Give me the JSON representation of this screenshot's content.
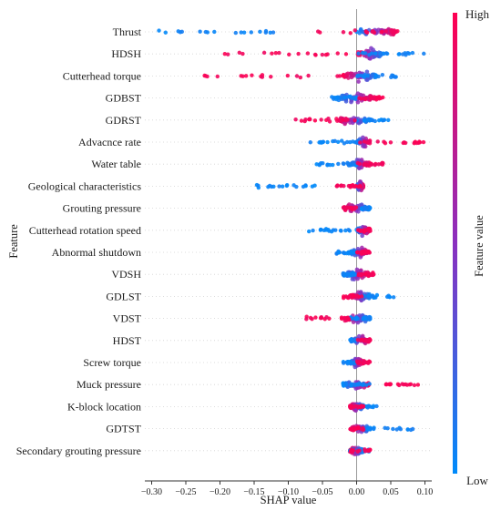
{
  "chart_data": {
    "type": "scatter",
    "subtype": "shap-beeswarm",
    "xlabel": "SHAP value",
    "ylabel": "Feature",
    "xlim": [
      -0.31,
      0.11
    ],
    "xticks": [
      -0.3,
      -0.25,
      -0.2,
      -0.15,
      -0.1,
      -0.05,
      0.0,
      0.05,
      0.1
    ],
    "xtick_labels": [
      "−0.30",
      "−0.25",
      "−0.20",
      "−0.15",
      "−0.10",
      "−0.05",
      "0.00",
      "0.05",
      "0.10"
    ],
    "zero_line": true,
    "colorbar": {
      "title": "Feature value",
      "high_label": "High",
      "low_label": "Low",
      "high_color": "#ff0051",
      "low_color": "#008bfb"
    },
    "features": [
      {
        "name": "Thrust",
        "low_range": [
          -0.29,
          -0.12
        ],
        "high_range": [
          -0.06,
          0.06
        ],
        "core": [
          0.0,
          0.06
        ]
      },
      {
        "name": "HDSH",
        "low_range": [
          0.0,
          0.1
        ],
        "high_range": [
          -0.2,
          0.01
        ],
        "core": [
          0.0,
          0.04
        ]
      },
      {
        "name": "Cutterhead torque",
        "low_range": [
          0.0,
          0.06
        ],
        "high_range": [
          -0.23,
          0.01
        ],
        "core": [
          -0.02,
          0.03
        ]
      },
      {
        "name": "GDBST",
        "low_range": [
          -0.04,
          0.0
        ],
        "high_range": [
          0.0,
          0.04
        ],
        "core": [
          -0.03,
          0.03
        ]
      },
      {
        "name": "GDRST",
        "low_range": [
          0.0,
          0.05
        ],
        "high_range": [
          -0.09,
          0.01
        ],
        "core": [
          -0.03,
          0.02
        ]
      },
      {
        "name": "Advacnce rate",
        "low_range": [
          -0.07,
          0.0
        ],
        "high_range": [
          0.0,
          0.1
        ],
        "core": [
          0.0,
          0.02
        ]
      },
      {
        "name": "Water table",
        "low_range": [
          -0.06,
          0.0
        ],
        "high_range": [
          0.0,
          0.04
        ],
        "core": [
          -0.01,
          0.02
        ]
      },
      {
        "name": "Geological characteristics",
        "low_range": [
          -0.15,
          -0.05
        ],
        "high_range": [
          -0.03,
          0.01
        ],
        "core": [
          0.0,
          0.01
        ]
      },
      {
        "name": "Grouting pressure",
        "low_range": [
          0.0,
          0.02
        ],
        "high_range": [
          -0.02,
          0.0
        ],
        "core": [
          -0.02,
          0.02
        ]
      },
      {
        "name": "Cutterhead rotation speed",
        "low_range": [
          -0.07,
          -0.01
        ],
        "high_range": [
          0.0,
          0.02
        ],
        "core": [
          0.0,
          0.02
        ]
      },
      {
        "name": "Abnormal shutdown",
        "low_range": [
          -0.03,
          0.0
        ],
        "high_range": [
          0.0,
          0.02
        ],
        "core": [
          -0.01,
          0.02
        ]
      },
      {
        "name": "VDSH",
        "low_range": [
          -0.02,
          0.0
        ],
        "high_range": [
          0.0,
          0.03
        ],
        "core": [
          -0.02,
          0.02
        ]
      },
      {
        "name": "GDLST",
        "low_range": [
          0.0,
          0.06
        ],
        "high_range": [
          -0.02,
          0.01
        ],
        "core": [
          -0.01,
          0.02
        ]
      },
      {
        "name": "VDST",
        "low_range": [
          -0.01,
          0.02
        ],
        "high_range": [
          -0.08,
          -0.01
        ],
        "core": [
          -0.02,
          0.02
        ]
      },
      {
        "name": "HDST",
        "low_range": [
          -0.01,
          0.0
        ],
        "high_range": [
          0.0,
          0.02
        ],
        "core": [
          -0.01,
          0.02
        ]
      },
      {
        "name": "Screw torque",
        "low_range": [
          -0.02,
          0.0
        ],
        "high_range": [
          0.0,
          0.02
        ],
        "core": [
          -0.01,
          0.01
        ]
      },
      {
        "name": "Muck pressure",
        "low_range": [
          -0.02,
          0.02
        ],
        "high_range": [
          0.04,
          0.09
        ],
        "core": [
          -0.02,
          0.02
        ]
      },
      {
        "name": "K-block location",
        "low_range": [
          -0.01,
          0.03
        ],
        "high_range": [
          -0.01,
          0.01
        ],
        "core": [
          -0.01,
          0.01
        ]
      },
      {
        "name": "GDTST",
        "low_range": [
          0.0,
          0.1
        ],
        "high_range": [
          -0.01,
          0.01
        ],
        "core": [
          -0.01,
          0.02
        ]
      },
      {
        "name": "Secondary grouting pressure",
        "low_range": [
          -0.01,
          0.02
        ],
        "high_range": [
          -0.01,
          0.02
        ],
        "core": [
          -0.01,
          0.01
        ]
      }
    ]
  }
}
